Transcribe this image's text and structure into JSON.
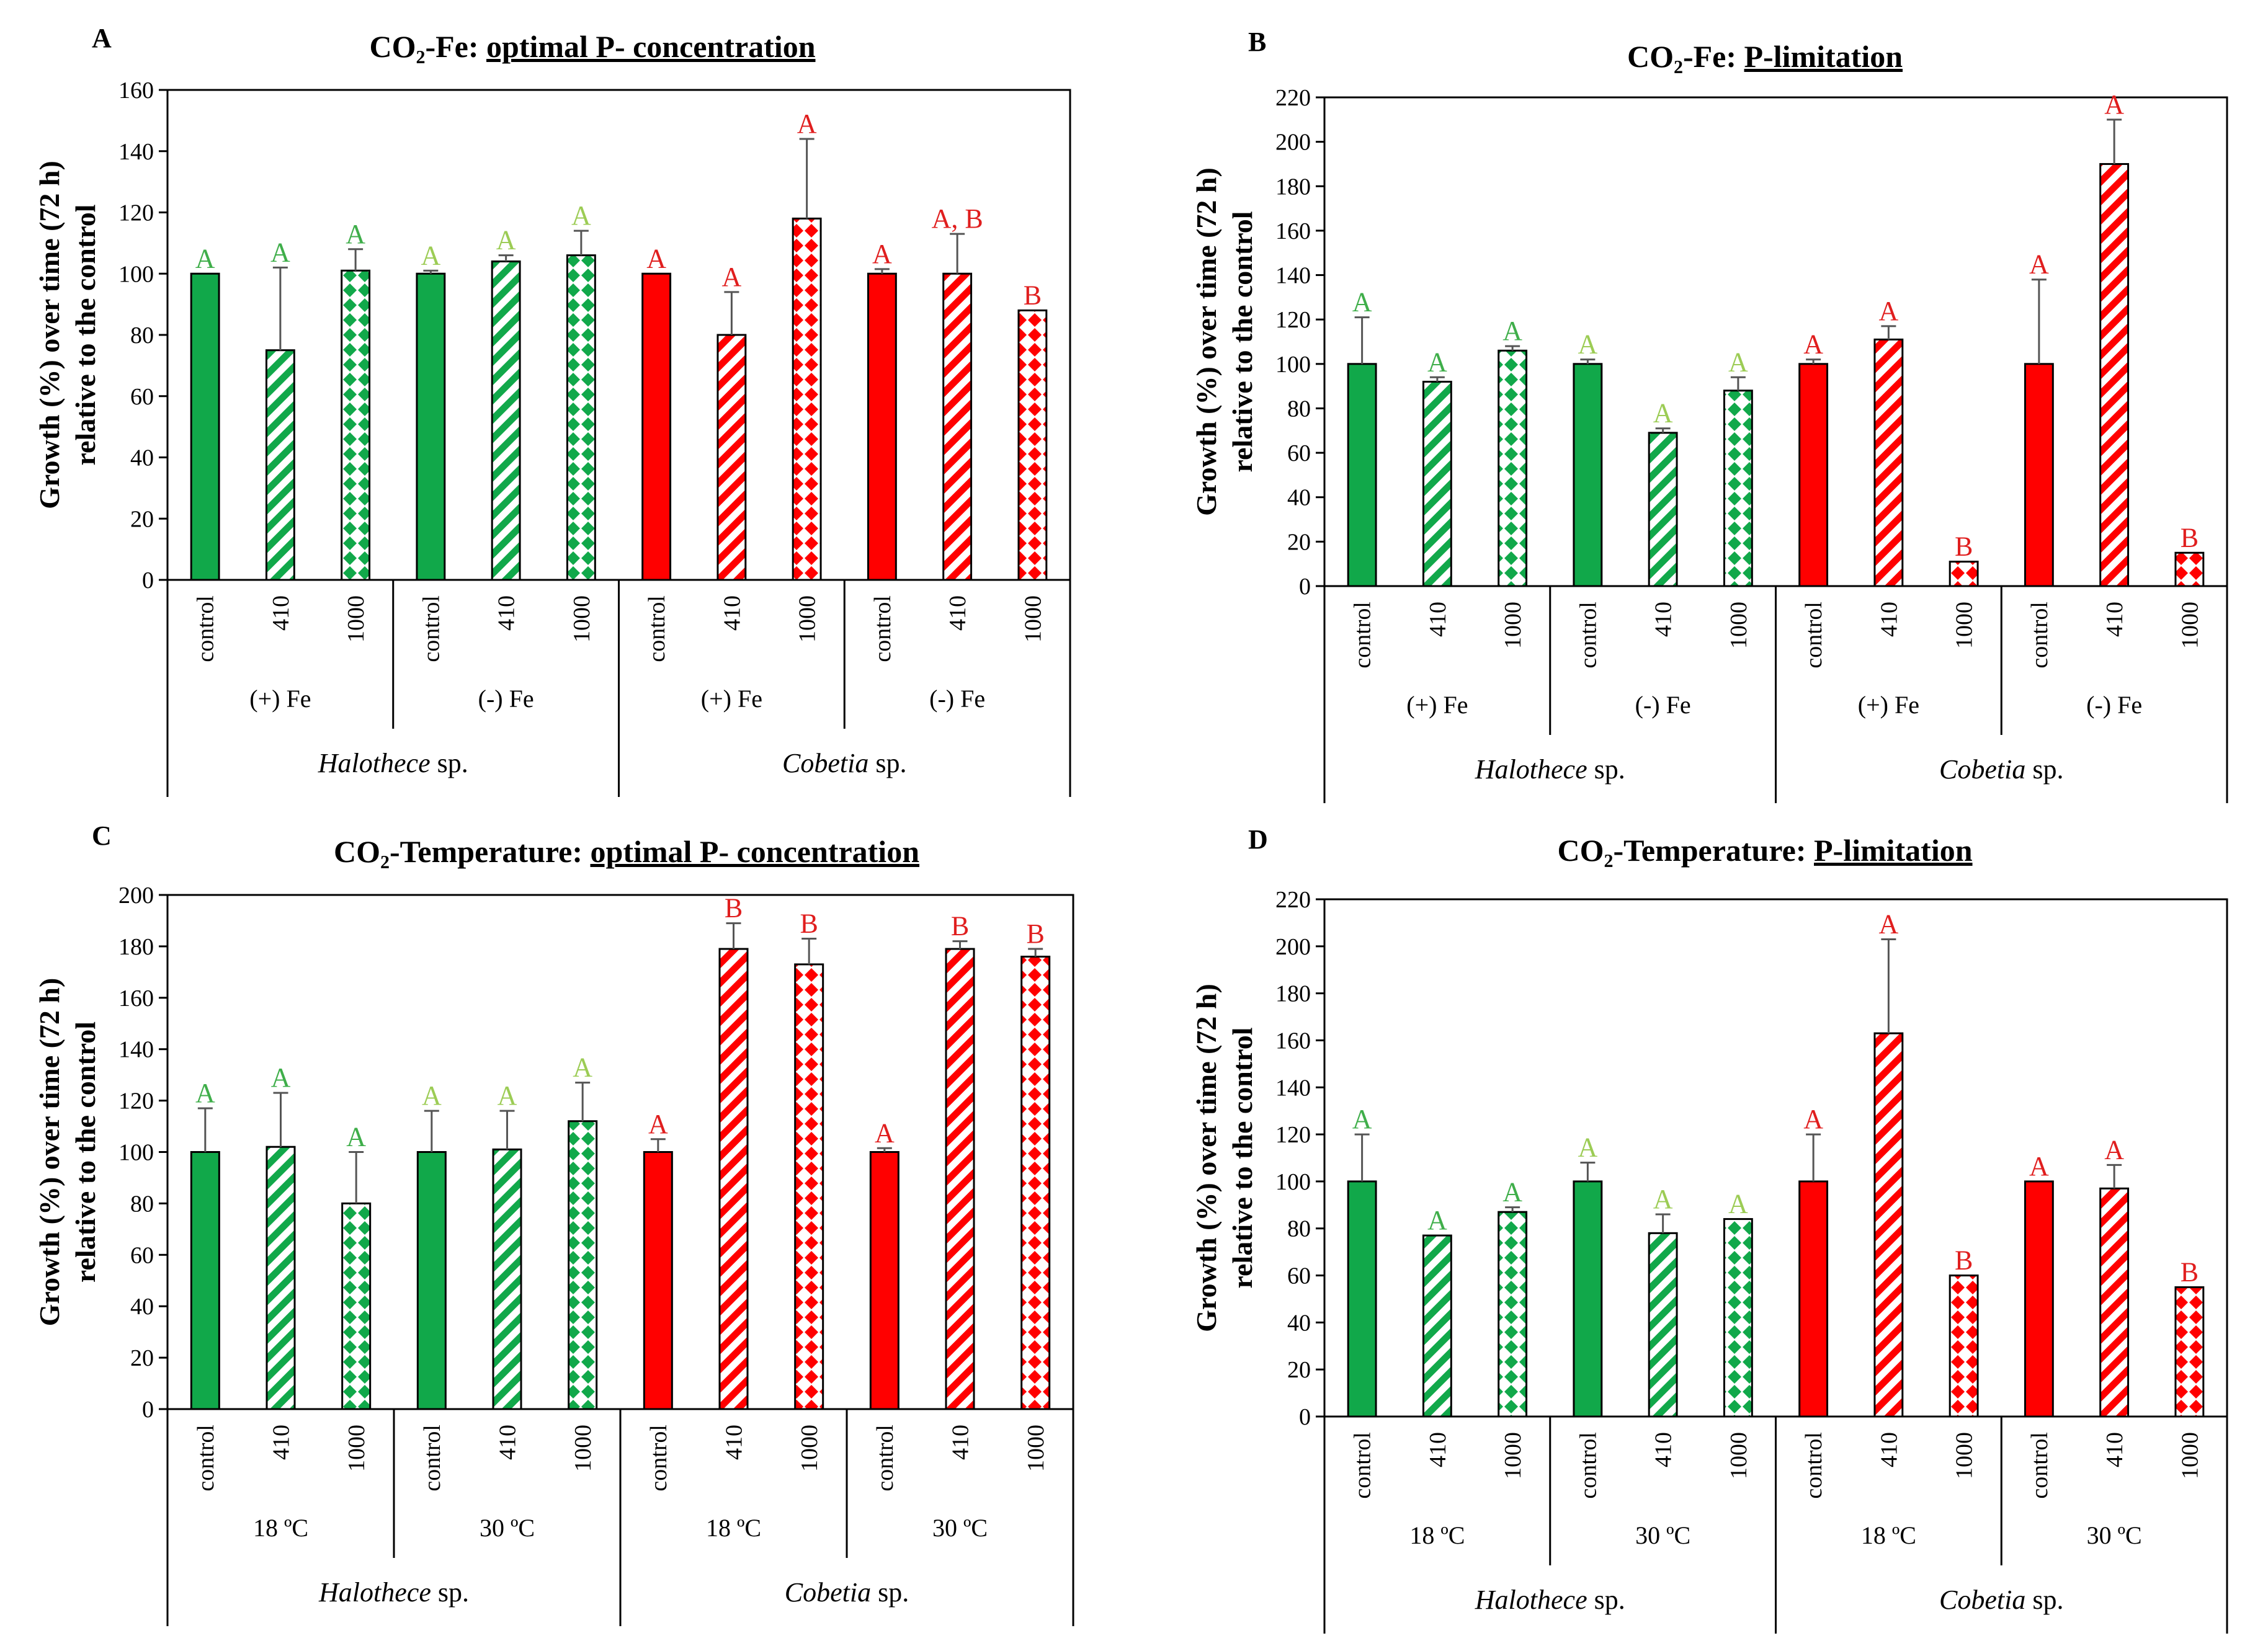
{
  "colors": {
    "green": "#11a84a",
    "red": "#ff0000",
    "green_letter": "#3fae4a",
    "lightgreen_letter": "#9ccc55",
    "red_letter": "#e01e1e",
    "axis": "#000000",
    "error_bar": "#555555"
  },
  "bar_labels": [
    "control",
    "410",
    "1000"
  ],
  "species": [
    "Halothece sp.",
    "Cobetia sp."
  ],
  "chart_data": [
    {
      "type": "bar",
      "panel": "A",
      "title_prefix": "CO₂-Fe: ",
      "title_underlined": "optimal P- concentration",
      "ylabel_line1": "Growth (%) over time (72 h)",
      "ylabel_line2": "relative to the control",
      "ylim": [
        0,
        160
      ],
      "ytick_step": 20,
      "yticks": [
        "0",
        "20",
        "40",
        "60",
        "80",
        "100",
        "120",
        "140",
        "160"
      ],
      "groups": [
        "(+) Fe",
        "(-) Fe",
        "(+) Fe",
        "(-) Fe"
      ],
      "values": [
        100,
        75,
        101,
        100,
        104,
        106,
        100,
        80,
        118,
        100,
        100,
        88
      ],
      "errors": [
        0,
        27,
        7,
        1,
        2,
        8,
        0,
        14,
        26,
        1.5,
        13,
        0
      ],
      "letters": [
        "A",
        "A",
        "A",
        "A",
        "A",
        "A",
        "A",
        "A",
        "A",
        "A",
        "A, B",
        "B"
      ]
    },
    {
      "type": "bar",
      "panel": "B",
      "title_prefix": "CO₂-Fe: ",
      "title_underlined": "P-limitation",
      "ylabel_line1": "Growth (%) over time (72 h)",
      "ylabel_line2": "relative to the control",
      "ylim": [
        0,
        220
      ],
      "ytick_step": 20,
      "yticks": [
        "0",
        "20",
        "40",
        "60",
        "80",
        "100",
        "120",
        "140",
        "160",
        "180",
        "200",
        "220"
      ],
      "groups": [
        "(+) Fe",
        "(-) Fe",
        "(+) Fe",
        "(-) Fe"
      ],
      "values": [
        100,
        92,
        106,
        100,
        69,
        88,
        100,
        111,
        11,
        100,
        190,
        15
      ],
      "errors": [
        21,
        2,
        2,
        2,
        2,
        6,
        2,
        6,
        0,
        38,
        20,
        0
      ],
      "letters": [
        "A",
        "A",
        "A",
        "A",
        "A",
        "A",
        "A",
        "A",
        "B",
        "A",
        "A",
        "B"
      ]
    },
    {
      "type": "bar",
      "panel": "C",
      "title_prefix": "CO₂-Temperature: ",
      "title_underlined": "optimal P- concentration",
      "ylabel_line1": "Growth (%) over time (72 h)",
      "ylabel_line2": "relative to the control",
      "ylim": [
        0,
        200
      ],
      "ytick_step": 20,
      "yticks": [
        "0",
        "20",
        "40",
        "60",
        "80",
        "100",
        "120",
        "140",
        "160",
        "180",
        "200"
      ],
      "groups": [
        "18 ºC",
        "30 ºC",
        "18 ºC",
        "30 ºC"
      ],
      "values": [
        100,
        102,
        80,
        100,
        101,
        112,
        100,
        179,
        173,
        100,
        179,
        176
      ],
      "errors": [
        17,
        21,
        20,
        16,
        15,
        15,
        5,
        10,
        10,
        1.5,
        3,
        3
      ],
      "letters": [
        "A",
        "A",
        "A",
        "A",
        "A",
        "A",
        "A",
        "B",
        "B",
        "A",
        "B",
        "B"
      ]
    },
    {
      "type": "bar",
      "panel": "D",
      "title_prefix": "CO₂-Temperature: ",
      "title_underlined": "P-limitation",
      "ylabel_line1": "Growth (%) over time (72 h)",
      "ylabel_line2": "relative to the control",
      "ylim": [
        0,
        220
      ],
      "ytick_step": 20,
      "yticks": [
        "0",
        "20",
        "40",
        "60",
        "80",
        "100",
        "120",
        "140",
        "160",
        "180",
        "200",
        "220"
      ],
      "groups": [
        "18 ºC",
        "30 ºC",
        "18 ºC",
        "30 ºC"
      ],
      "values": [
        100,
        77,
        87,
        100,
        78,
        84,
        100,
        163,
        60,
        100,
        97,
        55
      ],
      "errors": [
        20,
        0,
        2,
        8,
        8,
        0,
        20,
        40,
        0,
        0,
        10,
        0
      ],
      "letters": [
        "A",
        "A",
        "A",
        "A",
        "A",
        "A",
        "A",
        "A",
        "B",
        "A",
        "A",
        "B"
      ]
    }
  ]
}
